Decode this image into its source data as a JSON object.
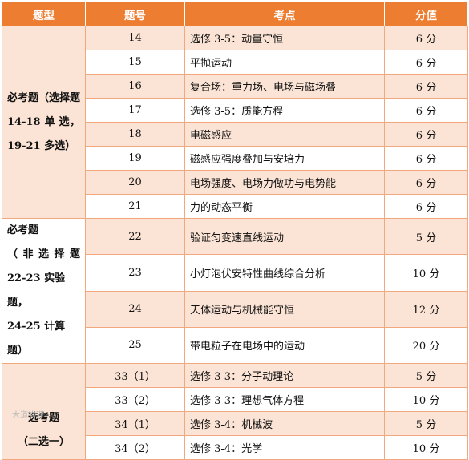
{
  "headers": {
    "type": "题型",
    "number": "题号",
    "topic": "考点",
    "score": "分值"
  },
  "groups": [
    {
      "lines": [
        "必考题（选择题",
        "14-18 单 选，",
        "19-21 多选）"
      ]
    },
    {
      "lines": [
        "必考题",
        "（非选择题",
        "22-23 实验题，",
        "24-25 计算题）"
      ]
    },
    {
      "lines": [
        "选考题",
        "（二选一）"
      ]
    }
  ],
  "rows": [
    {
      "number": "14",
      "topic": "选修 3-5：动量守恒",
      "score": "6 分"
    },
    {
      "number": "15",
      "topic": "平抛运动",
      "score": "6 分"
    },
    {
      "number": "16",
      "topic": "复合场：重力场、电场与磁场叠",
      "score": "6 分"
    },
    {
      "number": "17",
      "topic": "选修 3-5：质能方程",
      "score": "6 分"
    },
    {
      "number": "18",
      "topic": "电磁感应",
      "score": "6 分"
    },
    {
      "number": "19",
      "topic": "磁感应强度叠加与安培力",
      "score": "6 分"
    },
    {
      "number": "20",
      "topic": "电场强度、电场力做功与电势能",
      "score": "6 分"
    },
    {
      "number": "21",
      "topic": "力的动态平衡",
      "score": "6 分"
    },
    {
      "number": "22",
      "topic": "验证匀变速直线运动",
      "score": "5 分"
    },
    {
      "number": "23",
      "topic": "小灯泡伏安特性曲线综合分析",
      "score": "10 分"
    },
    {
      "number": "24",
      "topic": "天体运动与机械能守恒",
      "score": "12 分"
    },
    {
      "number": "25",
      "topic": "带电粒子在电场中的运动",
      "score": "20 分"
    },
    {
      "number": "33（1）",
      "topic": "选修 3-3：分子动理论",
      "score": "5 分"
    },
    {
      "number": "33（2）",
      "topic": "选修 3-3：理想气体方程",
      "score": "10 分"
    },
    {
      "number": "34（1）",
      "topic": "选修 3-4：机械波",
      "score": "5 分"
    },
    {
      "number": "34（2）",
      "topic": "选修 3-4：光学",
      "score": "10 分"
    }
  ],
  "watermark": "大道物理",
  "colors": {
    "header_bg": "#ed7d31",
    "band_bg": "#fbe4d5",
    "border": "#f2a87d"
  }
}
